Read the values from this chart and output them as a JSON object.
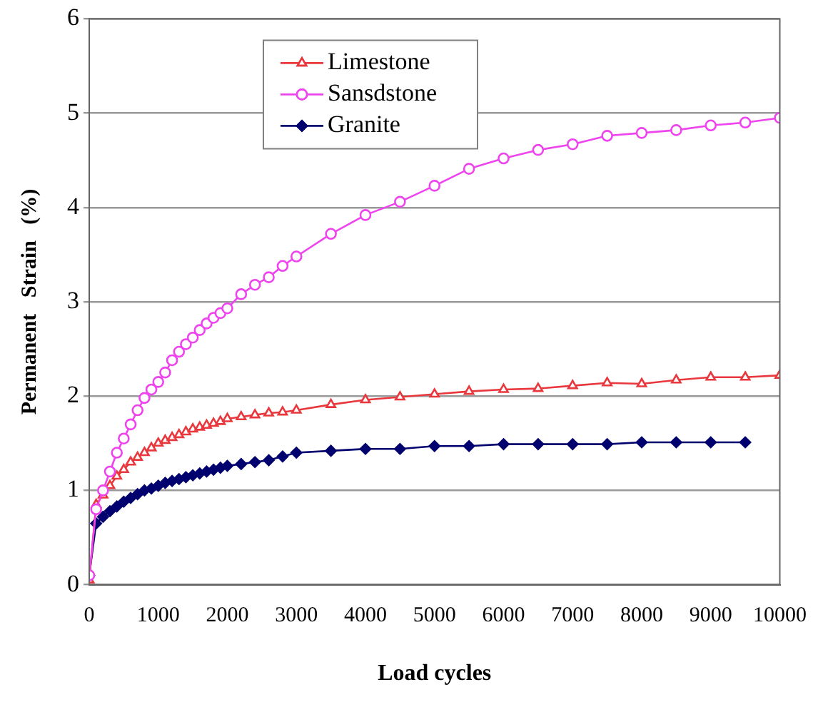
{
  "chart_data": {
    "type": "line",
    "xlabel": "Load cycles",
    "ylabel": "Permanent   Strain   (%)",
    "xlim": [
      0,
      10000
    ],
    "xticks": [
      0,
      1000,
      2000,
      3000,
      4000,
      5000,
      6000,
      7000,
      8000,
      9000,
      10000
    ],
    "ylim": [
      0,
      6
    ],
    "yticks": [
      0,
      1,
      2,
      3,
      4,
      5,
      6
    ],
    "grid": "y",
    "legend": "top left",
    "line_style": "solid",
    "series": [
      {
        "name": "Limestone",
        "color": "#e8383d",
        "marker": "triangle",
        "x": [
          0,
          100,
          200,
          300,
          400,
          500,
          600,
          700,
          800,
          900,
          1000,
          1100,
          1200,
          1300,
          1400,
          1500,
          1600,
          1700,
          1800,
          1900,
          2000,
          2200,
          2400,
          2600,
          2800,
          3000,
          3500,
          4000,
          4500,
          5000,
          5500,
          6000,
          6500,
          7000,
          7500,
          8000,
          8500,
          9000,
          9500,
          10000
        ],
        "values": [
          0.05,
          0.85,
          0.95,
          1.05,
          1.15,
          1.22,
          1.3,
          1.35,
          1.4,
          1.45,
          1.5,
          1.53,
          1.56,
          1.59,
          1.62,
          1.65,
          1.67,
          1.69,
          1.71,
          1.73,
          1.76,
          1.78,
          1.8,
          1.82,
          1.83,
          1.85,
          1.91,
          1.96,
          1.99,
          2.02,
          2.05,
          2.07,
          2.08,
          2.11,
          2.14,
          2.13,
          2.17,
          2.2,
          2.2,
          2.22
        ]
      },
      {
        "name": "Sansdstone",
        "color": "#ee44ee",
        "marker": "circle",
        "x": [
          0,
          100,
          200,
          300,
          400,
          500,
          600,
          700,
          800,
          900,
          1000,
          1100,
          1200,
          1300,
          1400,
          1500,
          1600,
          1700,
          1800,
          1900,
          2000,
          2200,
          2400,
          2600,
          2800,
          3000,
          3500,
          4000,
          4500,
          5000,
          5500,
          6000,
          6500,
          7000,
          7500,
          8000,
          8500,
          9000,
          9500,
          10000
        ],
        "values": [
          0.1,
          0.8,
          1.0,
          1.2,
          1.4,
          1.55,
          1.7,
          1.85,
          1.98,
          2.07,
          2.15,
          2.25,
          2.38,
          2.47,
          2.55,
          2.62,
          2.7,
          2.77,
          2.83,
          2.88,
          2.93,
          3.08,
          3.18,
          3.26,
          3.38,
          3.48,
          3.72,
          3.92,
          4.06,
          4.23,
          4.41,
          4.52,
          4.61,
          4.67,
          4.76,
          4.79,
          4.82,
          4.87,
          4.9,
          4.95
        ]
      },
      {
        "name": "Granite",
        "color": "#00006e",
        "marker": "diamond",
        "x": [
          0,
          100,
          200,
          300,
          400,
          500,
          600,
          700,
          800,
          900,
          1000,
          1100,
          1200,
          1300,
          1400,
          1500,
          1600,
          1700,
          1800,
          1900,
          2000,
          2200,
          2400,
          2600,
          2800,
          3000,
          3500,
          4000,
          4500,
          5000,
          5500,
          6000,
          6500,
          7000,
          7500,
          8000,
          8500,
          9000,
          9500
        ],
        "values": [
          0.1,
          0.65,
          0.72,
          0.78,
          0.83,
          0.88,
          0.92,
          0.96,
          1.0,
          1.02,
          1.05,
          1.08,
          1.1,
          1.12,
          1.14,
          1.16,
          1.18,
          1.2,
          1.22,
          1.24,
          1.26,
          1.28,
          1.3,
          1.32,
          1.36,
          1.4,
          1.42,
          1.44,
          1.44,
          1.47,
          1.47,
          1.49,
          1.49,
          1.49,
          1.49,
          1.51,
          1.51,
          1.51,
          1.51
        ]
      }
    ]
  }
}
